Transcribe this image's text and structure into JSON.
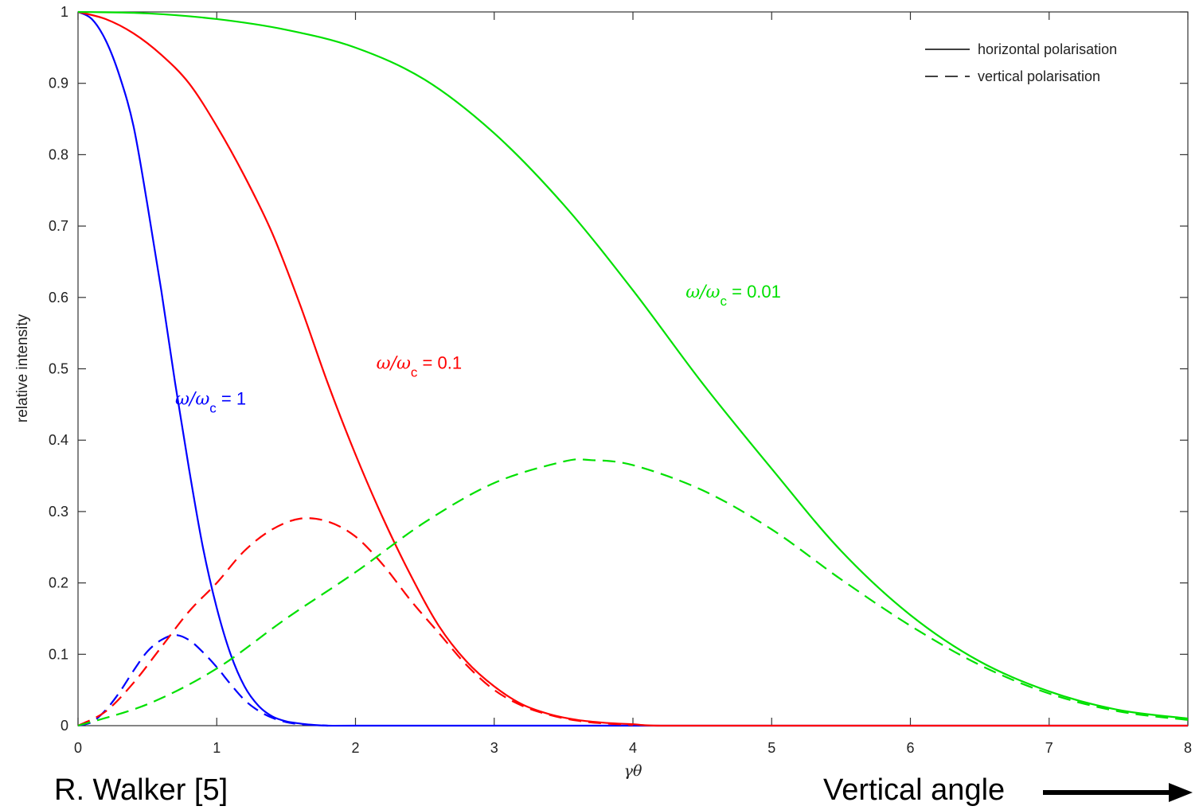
{
  "chart_data": {
    "type": "line",
    "xlabel": "γθ",
    "ylabel": "relative intensity",
    "xlim": [
      0,
      8
    ],
    "ylim": [
      0,
      1
    ],
    "xticks": [
      "0",
      "1",
      "2",
      "3",
      "4",
      "5",
      "6",
      "7",
      "8"
    ],
    "yticks": [
      "0",
      "0.1",
      "0.2",
      "0.3",
      "0.4",
      "0.5",
      "0.6",
      "0.7",
      "0.8",
      "0.9",
      "1"
    ],
    "grid": false,
    "legend": {
      "position": "top-right",
      "entries": [
        {
          "label": "horizontal polarisation",
          "linestyle": "solid"
        },
        {
          "label": "vertical polarisation",
          "linestyle": "dashed"
        }
      ]
    },
    "series": [
      {
        "group": "ω/ωc = 1",
        "polarisation": "horizontal",
        "linestyle": "solid",
        "color": "#0000ff",
        "x": [
          0,
          0.1,
          0.2,
          0.3,
          0.4,
          0.5,
          0.6,
          0.7,
          0.8,
          0.9,
          1.0,
          1.1,
          1.2,
          1.3,
          1.4,
          1.5,
          1.6,
          1.7,
          1.8,
          2.0,
          3.0,
          4.0,
          6.0,
          8.0
        ],
        "y": [
          1.0,
          0.99,
          0.96,
          0.91,
          0.84,
          0.73,
          0.61,
          0.48,
          0.36,
          0.25,
          0.165,
          0.1,
          0.055,
          0.028,
          0.013,
          0.006,
          0.003,
          0.001,
          0.0,
          0.0,
          0.0,
          0.0,
          0.0,
          0.0
        ]
      },
      {
        "group": "ω/ωc = 1",
        "polarisation": "vertical",
        "linestyle": "dashed",
        "color": "#0000ff",
        "x": [
          0,
          0.1,
          0.2,
          0.3,
          0.4,
          0.5,
          0.6,
          0.7,
          0.8,
          0.9,
          1.0,
          1.1,
          1.2,
          1.3,
          1.4,
          1.5,
          1.6,
          1.7,
          1.8
        ],
        "y": [
          0.0,
          0.005,
          0.022,
          0.047,
          0.077,
          0.104,
          0.12,
          0.127,
          0.12,
          0.103,
          0.082,
          0.058,
          0.036,
          0.021,
          0.011,
          0.005,
          0.002,
          0.001,
          0.0
        ]
      },
      {
        "group": "ω/ωc = 0.1",
        "polarisation": "horizontal",
        "linestyle": "solid",
        "color": "#ff0000",
        "x": [
          0,
          0.2,
          0.4,
          0.6,
          0.8,
          1.0,
          1.2,
          1.4,
          1.6,
          1.8,
          2.0,
          2.2,
          2.4,
          2.6,
          2.8,
          3.0,
          3.2,
          3.4,
          3.6,
          3.8,
          4.0,
          4.2,
          5.0,
          6.0,
          8.0
        ],
        "y": [
          1.0,
          0.99,
          0.97,
          0.94,
          0.9,
          0.84,
          0.77,
          0.69,
          0.59,
          0.48,
          0.38,
          0.29,
          0.21,
          0.14,
          0.09,
          0.055,
          0.03,
          0.016,
          0.008,
          0.004,
          0.002,
          0.0,
          0.0,
          0.0,
          0.0
        ]
      },
      {
        "group": "ω/ωc = 0.1",
        "polarisation": "vertical",
        "linestyle": "dashed",
        "color": "#ff0000",
        "x": [
          0,
          0.2,
          0.4,
          0.6,
          0.8,
          1.0,
          1.2,
          1.4,
          1.6,
          1.8,
          2.0,
          2.2,
          2.4,
          2.6,
          2.8,
          3.0,
          3.2,
          3.4,
          3.6,
          3.8,
          4.0
        ],
        "y": [
          0.0,
          0.02,
          0.06,
          0.11,
          0.16,
          0.2,
          0.245,
          0.275,
          0.29,
          0.286,
          0.265,
          0.225,
          0.175,
          0.13,
          0.085,
          0.05,
          0.028,
          0.015,
          0.007,
          0.003,
          0.001
        ]
      },
      {
        "group": "ω/ωc = 0.01",
        "polarisation": "horizontal",
        "linestyle": "solid",
        "color": "#00e000",
        "x": [
          0,
          0.5,
          1.0,
          1.5,
          2.0,
          2.5,
          3.0,
          3.5,
          4.0,
          4.5,
          5.0,
          5.5,
          6.0,
          6.5,
          7.0,
          7.5,
          8.0
        ],
        "y": [
          1.0,
          0.998,
          0.99,
          0.975,
          0.95,
          0.905,
          0.83,
          0.73,
          0.61,
          0.48,
          0.36,
          0.245,
          0.155,
          0.09,
          0.048,
          0.022,
          0.01
        ]
      },
      {
        "group": "ω/ωc = 0.01",
        "polarisation": "vertical",
        "linestyle": "dashed",
        "color": "#00e000",
        "x": [
          0,
          0.5,
          1.0,
          1.5,
          2.0,
          2.5,
          3.0,
          3.5,
          3.7,
          4.0,
          4.5,
          5.0,
          5.5,
          6.0,
          6.5,
          7.0,
          7.5,
          8.0
        ],
        "y": [
          0.0,
          0.03,
          0.08,
          0.15,
          0.215,
          0.285,
          0.34,
          0.37,
          0.372,
          0.365,
          0.33,
          0.275,
          0.205,
          0.14,
          0.085,
          0.045,
          0.02,
          0.008
        ]
      }
    ],
    "annotations": [
      {
        "text_symbol": "ω/ω",
        "text_sub": "c",
        "text_value": " = 1",
        "x": 0.7,
        "y": 0.45,
        "color": "#0000ff"
      },
      {
        "text_symbol": "ω/ω",
        "text_sub": "c",
        "text_value": " = 0.1",
        "x": 2.15,
        "y": 0.5,
        "color": "#ff0000"
      },
      {
        "text_symbol": "ω/ω",
        "text_sub": "c",
        "text_value": " = 0.01",
        "x": 4.38,
        "y": 0.6,
        "color": "#00e000"
      }
    ]
  },
  "captions": {
    "source": "R. Walker [5]",
    "direction": "Vertical angle"
  }
}
